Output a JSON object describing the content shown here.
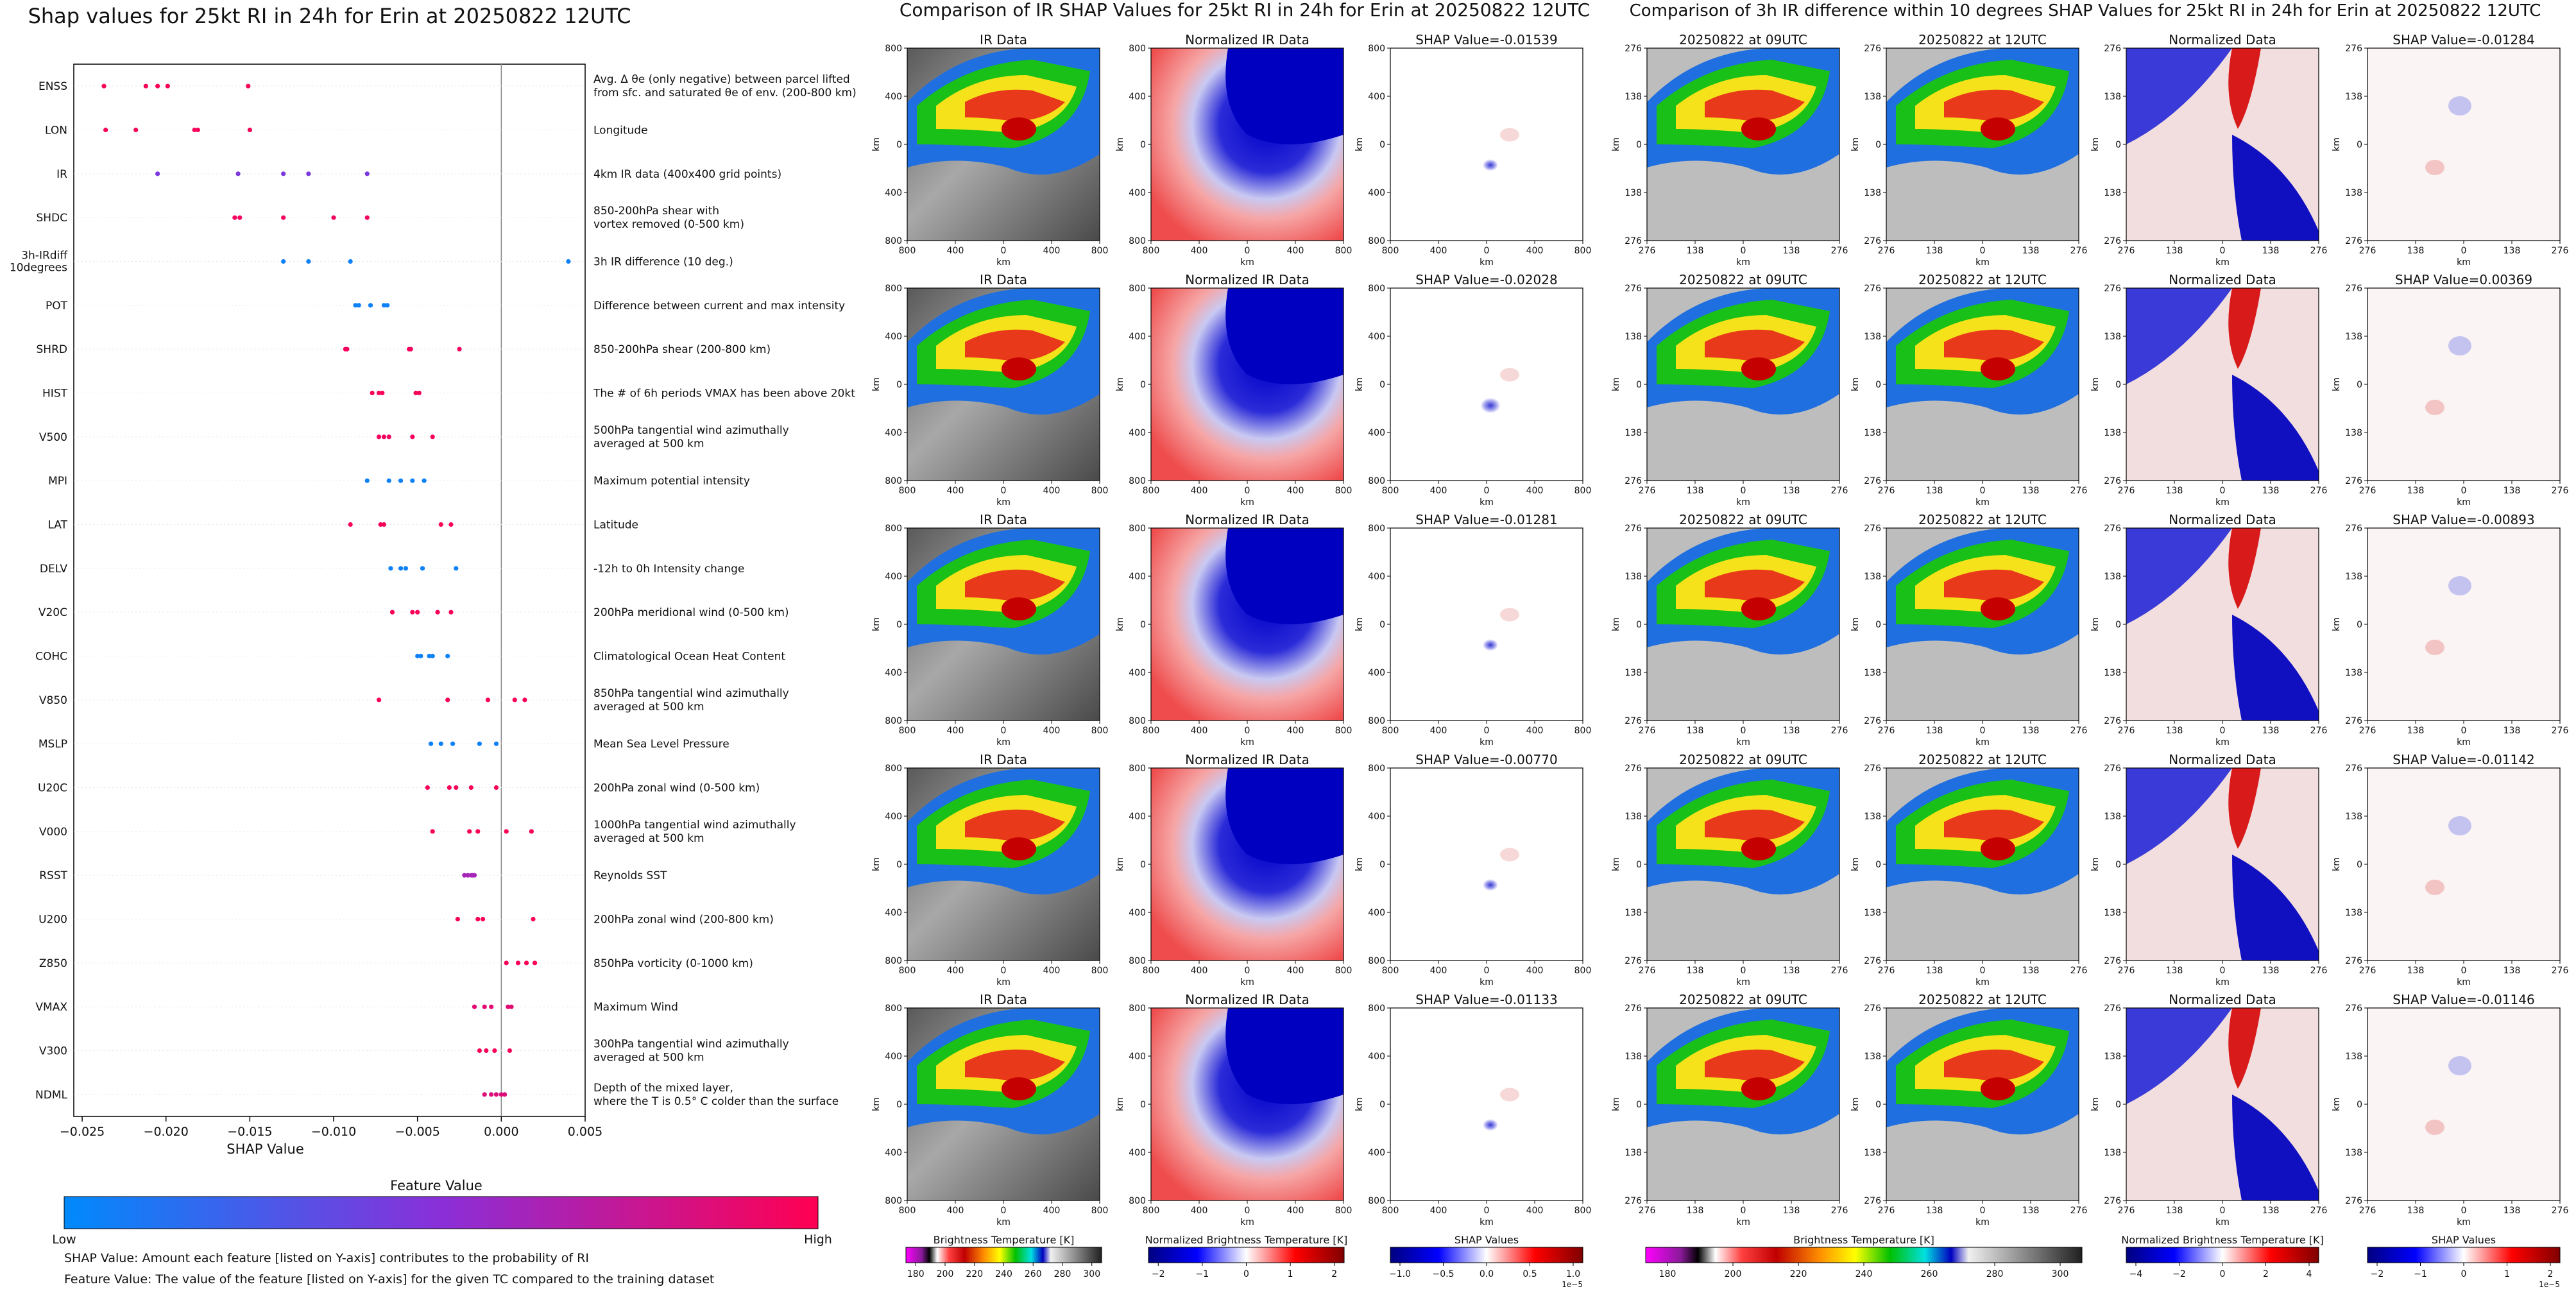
{
  "left_chart": {
    "title": "Shap values for 25kt RI in 24h for Erin at 20250822 12UTC",
    "xlabel": "SHAP Value",
    "colorbar_title": "Feature Value",
    "colorbar_low": "Low",
    "colorbar_high": "High",
    "notes": [
      "SHAP Value: Amount each feature [listed on Y-axis] contributes to the probability of RI",
      "Feature Value: The value of the feature [listed on Y-axis] for the given TC compared to the training dataset"
    ]
  },
  "mid_title": "Comparison of IR SHAP Values for 25kt RI in 24h for Erin at 20250822 12UTC",
  "right_title": "Comparison of 3h IR difference within 10 degrees SHAP Values for 25kt RI in 24h for Erin at 20250822 12UTC",
  "panels": {
    "ir_title": "IR Data",
    "nir_title": "Normalized IR Data",
    "d09_title": "20250822 at 09UTC",
    "d12_title": "20250822 at 12UTC",
    "nd_title": "Normalized Data",
    "axis_unit": "km",
    "ticks_800": [
      "800",
      "400",
      "0",
      "400",
      "800"
    ],
    "ticks_276": [
      "276",
      "138",
      "0",
      "138",
      "276"
    ],
    "ir_shap_titles": [
      "SHAP Value=-0.01539",
      "SHAP Value=-0.02028",
      "SHAP Value=-0.01281",
      "SHAP Value=-0.00770",
      "SHAP Value=-0.01133"
    ],
    "diff_shap_titles": [
      "SHAP Value=-0.01284",
      "SHAP Value=0.00369",
      "SHAP Value=-0.00893",
      "SHAP Value=-0.01142",
      "SHAP Value=-0.01146"
    ]
  },
  "colorbars": {
    "bt_label": "Brightness Temperature [K]",
    "bt_ticks": [
      "180",
      "200",
      "220",
      "240",
      "260",
      "280",
      "300"
    ],
    "nbt_label": "Normalized Brightness Temperature [K]",
    "nbt_ticks_a": [
      "−2",
      "−1",
      "0",
      "1",
      "2"
    ],
    "nbt_ticks_b": [
      "−4",
      "−2",
      "0",
      "2",
      "4"
    ],
    "shap_label": "SHAP Values",
    "shap_ticks_a": [
      "−1.0",
      "−0.5",
      "0.0",
      "0.5",
      "1.0"
    ],
    "shap_ticks_b": [
      "−2",
      "−1",
      "0",
      "1",
      "2"
    ],
    "shap_exp": "1e−5"
  },
  "chart_data": {
    "type": "scatter",
    "title": "Shap values for 25kt RI in 24h for Erin at 20250822 12UTC",
    "xlabel": "SHAP Value",
    "xlim": [
      -0.0255,
      0.005
    ],
    "xticks": [
      "−0.025",
      "−0.020",
      "−0.015",
      "−0.010",
      "−0.005",
      "0.000",
      "0.005"
    ],
    "xtick_values": [
      -0.025,
      -0.02,
      -0.015,
      -0.01,
      -0.005,
      0.0,
      0.005
    ],
    "grid": false,
    "features": [
      {
        "name": "ENSS",
        "desc": [
          "Avg. Δ θe (only negative) between parcel lifted",
          "from sfc. and saturated θe of env. (200-800 km)"
        ],
        "values": [
          -0.0237,
          -0.0212,
          -0.0205,
          -0.0199,
          -0.0151
        ],
        "feature_value": 0.98
      },
      {
        "name": "LON",
        "desc": [
          "Longitude"
        ],
        "values": [
          -0.0236,
          -0.0218,
          -0.0183,
          -0.0181,
          -0.015
        ],
        "feature_value": 0.97
      },
      {
        "name": "IR",
        "desc": [
          "4km IR data (400x400 grid points)"
        ],
        "values": [
          -0.0205,
          -0.0157,
          -0.013,
          -0.0115,
          -0.008
        ],
        "feature_value": 0.45
      },
      {
        "name": "SHDC",
        "desc": [
          "850-200hPa shear with",
          "vortex removed (0-500 km)"
        ],
        "values": [
          -0.0159,
          -0.0156,
          -0.013,
          -0.01,
          -0.008
        ],
        "feature_value": 0.95
      },
      {
        "name": "3h-IRdiff 10degrees",
        "desc": [
          "3h IR difference (10 deg.)"
        ],
        "values": [
          -0.013,
          -0.0115,
          -0.009,
          0.004
        ],
        "feature_value": 0.05
      },
      {
        "name": "POT",
        "desc": [
          "Difference between current and max intensity"
        ],
        "values": [
          -0.0087,
          -0.0085,
          -0.0078,
          -0.007,
          -0.0068
        ],
        "feature_value": 0.05
      },
      {
        "name": "SHRD",
        "desc": [
          "850-200hPa shear (200-800 km)"
        ],
        "values": [
          -0.0093,
          -0.0092,
          -0.0055,
          -0.0054,
          -0.0025
        ],
        "feature_value": 0.95
      },
      {
        "name": "HIST",
        "desc": [
          "The # of 6h periods VMAX has been above 20kt"
        ],
        "values": [
          -0.0077,
          -0.0073,
          -0.0071,
          -0.0051,
          -0.0049
        ],
        "feature_value": 0.97
      },
      {
        "name": "V500",
        "desc": [
          "500hPa tangential wind azimuthally",
          "averaged at 500 km"
        ],
        "values": [
          -0.0073,
          -0.007,
          -0.0067,
          -0.0053,
          -0.0041
        ],
        "feature_value": 0.95
      },
      {
        "name": "MPI",
        "desc": [
          "Maximum potential intensity"
        ],
        "values": [
          -0.008,
          -0.0067,
          -0.006,
          -0.0053,
          -0.0046
        ],
        "feature_value": 0.05
      },
      {
        "name": "LAT",
        "desc": [
          "Latitude"
        ],
        "values": [
          -0.009,
          -0.0072,
          -0.007,
          -0.0036,
          -0.003
        ],
        "feature_value": 0.97
      },
      {
        "name": "DELV",
        "desc": [
          "-12h to 0h Intensity change"
        ],
        "values": [
          -0.0066,
          -0.006,
          -0.0057,
          -0.0047,
          -0.0027
        ],
        "feature_value": 0.05
      },
      {
        "name": "V20C",
        "desc": [
          "200hPa meridional wind (0-500 km)"
        ],
        "values": [
          -0.0065,
          -0.0053,
          -0.005,
          -0.0038,
          -0.003
        ],
        "feature_value": 0.97
      },
      {
        "name": "COHC",
        "desc": [
          "Climatological Ocean Heat Content"
        ],
        "values": [
          -0.005,
          -0.0048,
          -0.0043,
          -0.0041,
          -0.0032
        ],
        "feature_value": 0.05
      },
      {
        "name": "V850",
        "desc": [
          "850hPa tangential wind azimuthally",
          "averaged at 500 km"
        ],
        "values": [
          -0.0073,
          -0.0032,
          -0.0008,
          0.0008,
          0.0014
        ],
        "feature_value": 0.97
      },
      {
        "name": "MSLP",
        "desc": [
          "Mean Sea Level Pressure"
        ],
        "values": [
          -0.0042,
          -0.0036,
          -0.0029,
          -0.0013,
          -0.0003
        ],
        "feature_value": 0.05
      },
      {
        "name": "U20C",
        "desc": [
          "200hPa zonal wind (0-500 km)"
        ],
        "values": [
          -0.0044,
          -0.0031,
          -0.0027,
          -0.0018,
          -0.0003
        ],
        "feature_value": 0.97
      },
      {
        "name": "V000",
        "desc": [
          "1000hPa tangential wind azimuthally",
          "averaged at 500 km"
        ],
        "values": [
          -0.0041,
          -0.0019,
          -0.0014,
          0.0003,
          0.0018
        ],
        "feature_value": 0.97
      },
      {
        "name": "RSST",
        "desc": [
          "Reynolds SST"
        ],
        "values": [
          -0.0022,
          -0.002,
          -0.0018,
          -0.0017,
          -0.0016
        ],
        "feature_value": 0.62
      },
      {
        "name": "U200",
        "desc": [
          "200hPa zonal wind (200-800 km)"
        ],
        "values": [
          -0.0026,
          -0.0014,
          -0.0011,
          0.0019
        ],
        "feature_value": 0.97
      },
      {
        "name": "Z850",
        "desc": [
          "850hPa vorticity (0-1000 km)"
        ],
        "values": [
          0.0003,
          0.001,
          0.0015,
          0.002
        ],
        "feature_value": 0.97
      },
      {
        "name": "VMAX",
        "desc": [
          "Maximum Wind"
        ],
        "values": [
          -0.0016,
          -0.001,
          -0.0006,
          0.0004,
          0.0006
        ],
        "feature_value": 0.88
      },
      {
        "name": "V300",
        "desc": [
          "300hPa tangential wind azimuthally",
          "averaged at 500 km"
        ],
        "values": [
          -0.0013,
          -0.0009,
          -0.0004,
          0.0005
        ],
        "feature_value": 0.97
      },
      {
        "name": "NDML",
        "desc": [
          "Depth of the mixed layer,",
          "where the T is 0.5° C colder than the surface"
        ],
        "values": [
          -0.001,
          -0.0006,
          -0.0003,
          0.0,
          0.0002
        ],
        "feature_value": 0.85
      }
    ],
    "colors": {
      "low": "#008afc",
      "mid": "#8a2fd8",
      "high": "#ff0052"
    }
  }
}
